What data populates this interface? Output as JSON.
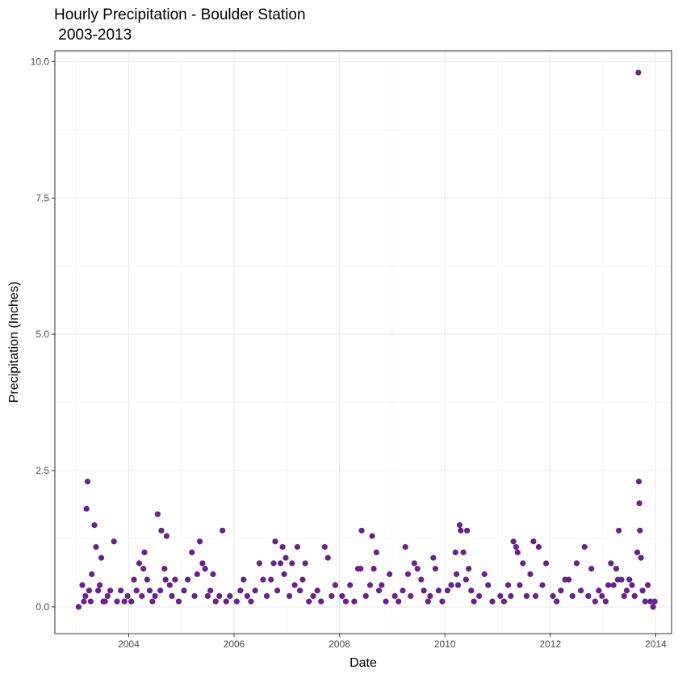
{
  "chart_data": {
    "type": "scatter",
    "title_line1": "Hourly Precipitation - Boulder Station",
    "title_line2": " 2003-2013",
    "xlabel": "Date",
    "ylabel": "Precipitation (Inches)",
    "xlim": [
      2002.6,
      2014.3
    ],
    "ylim": [
      -0.49,
      10.2
    ],
    "x_ticks": [
      2004,
      2006,
      2008,
      2010,
      2012,
      2014
    ],
    "x_tick_labels": [
      "2004",
      "2006",
      "2008",
      "2010",
      "2012",
      "2014"
    ],
    "y_ticks": [
      0,
      2.5,
      5,
      7.5,
      10
    ],
    "y_tick_labels": [
      "0.0",
      "2.5",
      "5.0",
      "7.5",
      "10.0"
    ],
    "grid": true,
    "point_color": "#68228b",
    "points": [
      [
        2003.05,
        0
      ],
      [
        2003.12,
        0.4
      ],
      [
        2003.15,
        0.1
      ],
      [
        2003.18,
        0.2
      ],
      [
        2003.22,
        2.3
      ],
      [
        2003.2,
        1.8
      ],
      [
        2003.25,
        0.3
      ],
      [
        2003.28,
        0.1
      ],
      [
        2003.3,
        0.6
      ],
      [
        2003.35,
        1.5
      ],
      [
        2003.38,
        1.1
      ],
      [
        2003.42,
        0.3
      ],
      [
        2003.45,
        0.4
      ],
      [
        2003.48,
        0.9
      ],
      [
        2003.52,
        0.1
      ],
      [
        2003.55,
        0.1
      ],
      [
        2003.6,
        0.2
      ],
      [
        2003.65,
        0.3
      ],
      [
        2003.72,
        1.2
      ],
      [
        2003.78,
        0.1
      ],
      [
        2003.85,
        0.3
      ],
      [
        2003.92,
        0.1
      ],
      [
        2003.98,
        0.2
      ],
      [
        2004.05,
        0.1
      ],
      [
        2004.1,
        0.5
      ],
      [
        2004.15,
        0.3
      ],
      [
        2004.2,
        0.8
      ],
      [
        2004.25,
        0.2
      ],
      [
        2004.28,
        0.7
      ],
      [
        2004.3,
        1.0
      ],
      [
        2004.35,
        0.5
      ],
      [
        2004.4,
        0.3
      ],
      [
        2004.45,
        0.1
      ],
      [
        2004.5,
        0.2
      ],
      [
        2004.55,
        1.7
      ],
      [
        2004.6,
        0.3
      ],
      [
        2004.62,
        1.4
      ],
      [
        2004.68,
        0.7
      ],
      [
        2004.7,
        0.5
      ],
      [
        2004.72,
        1.3
      ],
      [
        2004.78,
        0.4
      ],
      [
        2004.82,
        0.2
      ],
      [
        2004.88,
        0.5
      ],
      [
        2004.95,
        0.1
      ],
      [
        2005.05,
        0.3
      ],
      [
        2005.12,
        0.5
      ],
      [
        2005.2,
        1.0
      ],
      [
        2005.25,
        0.2
      ],
      [
        2005.3,
        0.6
      ],
      [
        2005.35,
        1.2
      ],
      [
        2005.4,
        0.8
      ],
      [
        2005.45,
        0.7
      ],
      [
        2005.5,
        0.2
      ],
      [
        2005.55,
        0.3
      ],
      [
        2005.6,
        0.6
      ],
      [
        2005.65,
        0.1
      ],
      [
        2005.72,
        0.2
      ],
      [
        2005.78,
        1.4
      ],
      [
        2005.85,
        0.1
      ],
      [
        2005.92,
        0.2
      ],
      [
        2006.05,
        0.1
      ],
      [
        2006.12,
        0.3
      ],
      [
        2006.18,
        0.5
      ],
      [
        2006.25,
        0.2
      ],
      [
        2006.32,
        0.1
      ],
      [
        2006.4,
        0.3
      ],
      [
        2006.48,
        0.8
      ],
      [
        2006.55,
        0.5
      ],
      [
        2006.62,
        0.2
      ],
      [
        2006.7,
        0.5
      ],
      [
        2006.75,
        0.8
      ],
      [
        2006.78,
        1.2
      ],
      [
        2006.82,
        0.3
      ],
      [
        2006.88,
        0.8
      ],
      [
        2006.92,
        1.1
      ],
      [
        2006.95,
        0.6
      ],
      [
        2006.98,
        0.9
      ],
      [
        2007.05,
        0.2
      ],
      [
        2007.1,
        0.8
      ],
      [
        2007.15,
        0.4
      ],
      [
        2007.2,
        1.1
      ],
      [
        2007.25,
        0.3
      ],
      [
        2007.3,
        0.5
      ],
      [
        2007.35,
        0.8
      ],
      [
        2007.42,
        0.1
      ],
      [
        2007.5,
        0.2
      ],
      [
        2007.58,
        0.3
      ],
      [
        2007.65,
        0.1
      ],
      [
        2007.72,
        1.1
      ],
      [
        2007.78,
        0.9
      ],
      [
        2007.85,
        0.2
      ],
      [
        2007.92,
        0.4
      ],
      [
        2008.05,
        0.2
      ],
      [
        2008.12,
        0.1
      ],
      [
        2008.2,
        0.4
      ],
      [
        2008.28,
        0.1
      ],
      [
        2008.35,
        0.7
      ],
      [
        2008.4,
        0.7
      ],
      [
        2008.42,
        1.4
      ],
      [
        2008.5,
        0.2
      ],
      [
        2008.58,
        0.4
      ],
      [
        2008.62,
        1.3
      ],
      [
        2008.65,
        0.7
      ],
      [
        2008.7,
        1.0
      ],
      [
        2008.75,
        0.3
      ],
      [
        2008.8,
        0.4
      ],
      [
        2008.88,
        0.1
      ],
      [
        2008.95,
        0.6
      ],
      [
        2009.05,
        0.2
      ],
      [
        2009.12,
        0.1
      ],
      [
        2009.2,
        0.3
      ],
      [
        2009.25,
        1.1
      ],
      [
        2009.3,
        0.6
      ],
      [
        2009.35,
        0.2
      ],
      [
        2009.42,
        0.8
      ],
      [
        2009.48,
        0.7
      ],
      [
        2009.55,
        0.5
      ],
      [
        2009.6,
        0.3
      ],
      [
        2009.68,
        0.1
      ],
      [
        2009.72,
        0.2
      ],
      [
        2009.78,
        0.9
      ],
      [
        2009.82,
        0.7
      ],
      [
        2009.88,
        0.3
      ],
      [
        2009.95,
        0.1
      ],
      [
        2010.05,
        0.3
      ],
      [
        2010.12,
        0.4
      ],
      [
        2010.2,
        1.0
      ],
      [
        2010.22,
        0.6
      ],
      [
        2010.25,
        0.4
      ],
      [
        2010.28,
        1.5
      ],
      [
        2010.3,
        1.4
      ],
      [
        2010.35,
        1.0
      ],
      [
        2010.4,
        0.5
      ],
      [
        2010.42,
        1.4
      ],
      [
        2010.45,
        0.7
      ],
      [
        2010.5,
        0.3
      ],
      [
        2010.55,
        0.1
      ],
      [
        2010.65,
        0.2
      ],
      [
        2010.75,
        0.6
      ],
      [
        2010.82,
        0.4
      ],
      [
        2010.9,
        0.1
      ],
      [
        2011.05,
        0.2
      ],
      [
        2011.12,
        0.1
      ],
      [
        2011.2,
        0.4
      ],
      [
        2011.25,
        0.2
      ],
      [
        2011.3,
        1.2
      ],
      [
        2011.35,
        1.1
      ],
      [
        2011.38,
        1.0
      ],
      [
        2011.42,
        0.4
      ],
      [
        2011.48,
        0.8
      ],
      [
        2011.55,
        0.2
      ],
      [
        2011.62,
        0.6
      ],
      [
        2011.68,
        1.2
      ],
      [
        2011.72,
        0.2
      ],
      [
        2011.78,
        1.1
      ],
      [
        2011.85,
        0.4
      ],
      [
        2011.92,
        0.8
      ],
      [
        2012.05,
        0.2
      ],
      [
        2012.12,
        0.1
      ],
      [
        2012.2,
        0.3
      ],
      [
        2012.28,
        0.5
      ],
      [
        2012.35,
        0.5
      ],
      [
        2012.42,
        0.2
      ],
      [
        2012.5,
        0.8
      ],
      [
        2012.58,
        0.3
      ],
      [
        2012.65,
        1.1
      ],
      [
        2012.72,
        0.2
      ],
      [
        2012.78,
        0.7
      ],
      [
        2012.85,
        0.1
      ],
      [
        2012.92,
        0.3
      ],
      [
        2012.98,
        0.2
      ],
      [
        2013.05,
        0.1
      ],
      [
        2013.1,
        0.4
      ],
      [
        2013.15,
        0.8
      ],
      [
        2013.2,
        0.4
      ],
      [
        2013.25,
        0.7
      ],
      [
        2013.28,
        0.5
      ],
      [
        2013.3,
        1.4
      ],
      [
        2013.35,
        0.5
      ],
      [
        2013.4,
        0.2
      ],
      [
        2013.45,
        0.3
      ],
      [
        2013.5,
        0.5
      ],
      [
        2013.55,
        0.4
      ],
      [
        2013.6,
        0.2
      ],
      [
        2013.65,
        1.0
      ],
      [
        2013.67,
        9.8
      ],
      [
        2013.68,
        2.3
      ],
      [
        2013.69,
        1.9
      ],
      [
        2013.7,
        1.4
      ],
      [
        2013.72,
        0.9
      ],
      [
        2013.75,
        0.3
      ],
      [
        2013.8,
        0.1
      ],
      [
        2013.85,
        0.4
      ],
      [
        2013.9,
        0.1
      ],
      [
        2013.95,
        0
      ],
      [
        2013.98,
        0.1
      ]
    ]
  }
}
